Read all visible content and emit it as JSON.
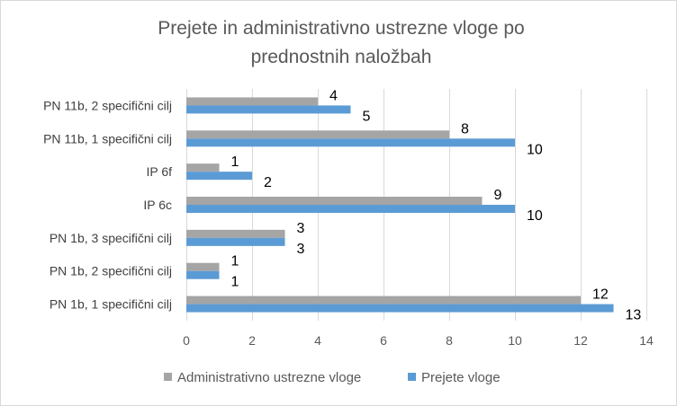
{
  "chart_data": {
    "type": "bar",
    "orientation": "horizontal",
    "title": "Prejete in administrativno ustrezne vloge po prednostnih naložbah",
    "title_lines": [
      "Prejete in administrativno ustrezne vloge po",
      "prednostnih naložbah"
    ],
    "categories": [
      "PN 11b, 2 specifični cilj",
      "PN 11b, 1 specifični cilj",
      "IP 6f",
      "IP 6c",
      "PN 1b, 3 specifični cilj",
      "PN 1b, 2 specifični cilj",
      "PN 1b, 1 specifični cilj"
    ],
    "series": [
      {
        "name": "Administrativno ustrezne vloge",
        "color": "#a5a5a5",
        "values": [
          4,
          8,
          1,
          9,
          3,
          1,
          12
        ]
      },
      {
        "name": "Prejete vloge",
        "color": "#5b9bd5",
        "values": [
          5,
          10,
          2,
          10,
          3,
          1,
          13
        ]
      }
    ],
    "xlim": [
      0,
      14
    ],
    "xticks": [
      0,
      2,
      4,
      6,
      8,
      10,
      12,
      14
    ],
    "grid": true,
    "legend_position": "bottom",
    "data_labels": true
  }
}
